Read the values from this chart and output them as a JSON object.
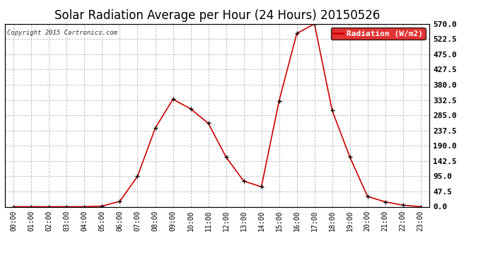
{
  "title": "Solar Radiation Average per Hour (24 Hours) 20150526",
  "copyright": "Copyright 2015 Cartronics.com",
  "legend_label": "Radiation (W/m2)",
  "hours": [
    "00:00",
    "01:00",
    "02:00",
    "03:00",
    "04:00",
    "05:00",
    "06:00",
    "07:00",
    "08:00",
    "09:00",
    "10:00",
    "11:00",
    "12:00",
    "13:00",
    "14:00",
    "15:00",
    "16:00",
    "17:00",
    "18:00",
    "19:00",
    "20:00",
    "21:00",
    "22:00",
    "23:00"
  ],
  "values": [
    0.0,
    0.0,
    0.0,
    0.0,
    0.0,
    2.0,
    17.0,
    95.0,
    245.0,
    335.0,
    305.0,
    260.0,
    155.0,
    80.0,
    62.0,
    330.0,
    540.0,
    570.0,
    300.0,
    155.0,
    32.0,
    15.0,
    5.0,
    0.0
  ],
  "line_color": "#cc0000",
  "marker_color": "#000000",
  "bg_color": "#ffffff",
  "grid_color": "#bbbbbb",
  "ylim": [
    0,
    570
  ],
  "yticks": [
    0.0,
    47.5,
    95.0,
    142.5,
    190.0,
    237.5,
    285.0,
    332.5,
    380.0,
    427.5,
    475.0,
    522.5,
    570.0
  ],
  "title_fontsize": 12,
  "legend_bg": "#dd0000",
  "legend_text_color": "#ffffff"
}
